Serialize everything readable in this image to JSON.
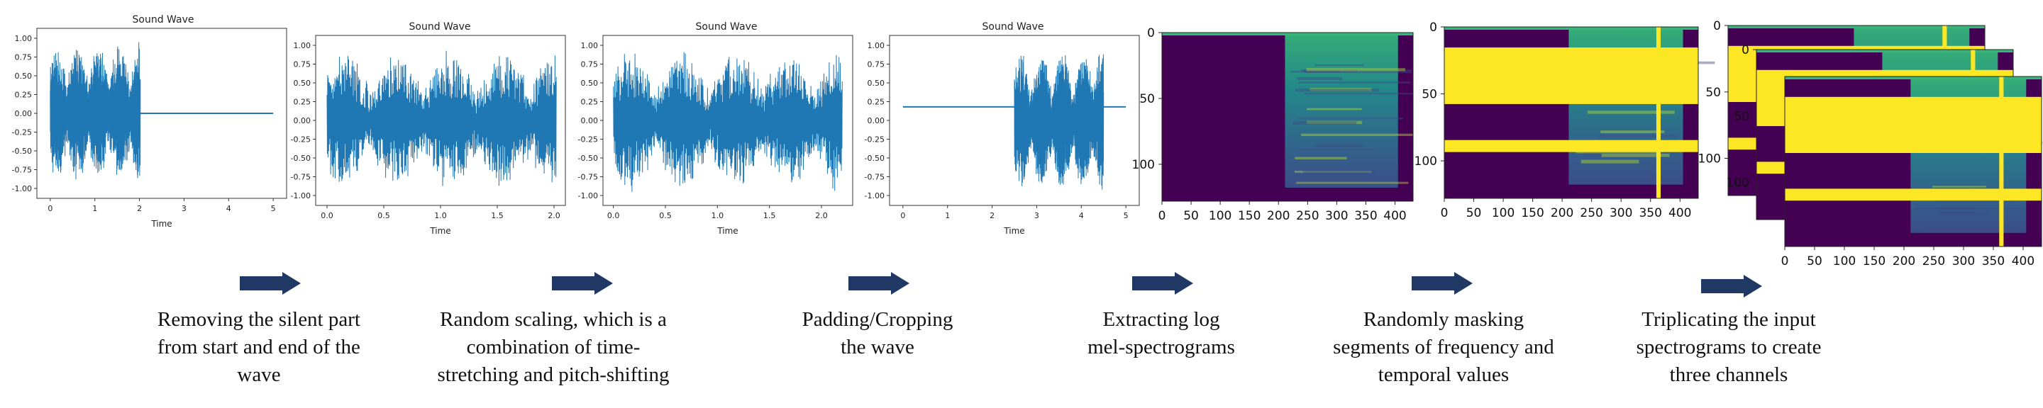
{
  "colors": {
    "wave": "#1f77b4",
    "arrow": "#1f3864",
    "spec_bg": "#440154",
    "mask": "#fde725",
    "spec_active": "#2a9e8a"
  },
  "waveforms": [
    {
      "title": "Sound Wave",
      "xlabel": "Time",
      "xticks": [
        "0",
        "1",
        "2",
        "3",
        "4",
        "5"
      ],
      "yticks": [
        "1.00",
        "0.75",
        "0.50",
        "0.25",
        "0.00",
        "-0.25",
        "-0.50",
        "-0.75",
        "-1.00"
      ]
    },
    {
      "title": "Sound Wave",
      "xlabel": "Time",
      "xticks": [
        "0.0",
        "0.5",
        "1.0",
        "1.5",
        "2.0"
      ],
      "yticks": [
        "1.00",
        "0.75",
        "0.50",
        "0.25",
        "0.00",
        "-0.25",
        "-0.50",
        "-0.75",
        "-1.00"
      ]
    },
    {
      "title": "Sound Wave",
      "xlabel": "Time",
      "xticks": [
        "0.0",
        "0.5",
        "1.0",
        "1.5",
        "2.0"
      ],
      "yticks": [
        "1.00",
        "0.75",
        "0.50",
        "0.25",
        "0.00",
        "-0.25",
        "-0.50",
        "-0.75",
        "-1.00"
      ]
    },
    {
      "title": "Sound Wave",
      "xlabel": "Time",
      "xticks": [
        "0",
        "1",
        "2",
        "3",
        "4",
        "5"
      ],
      "yticks": [
        "1.00",
        "0.75",
        "0.50",
        "0.25",
        "0.00",
        "-0.25",
        "-0.50",
        "-0.75",
        "-1.00"
      ]
    }
  ],
  "spectrograms": {
    "yticks": [
      "0",
      "50",
      "100"
    ],
    "xticks": [
      "0",
      "50",
      "100",
      "150",
      "200",
      "250",
      "300",
      "350",
      "400"
    ]
  },
  "steps": [
    {
      "lines": [
        "Removing the silent part",
        "from start and end of the",
        "wave"
      ]
    },
    {
      "lines": [
        "Random scaling, which is a",
        "combination of time-",
        "stretching and pitch-shifting"
      ]
    },
    {
      "lines": [
        "Padding/Cropping",
        "the wave"
      ]
    },
    {
      "lines": [
        "Extracting log",
        "mel-spectrograms"
      ]
    },
    {
      "lines": [
        "Randomly masking",
        "segments of frequency and",
        "temporal values"
      ]
    },
    {
      "lines": [
        "Triplicating the input",
        "spectrograms to create",
        "three channels"
      ]
    }
  ]
}
